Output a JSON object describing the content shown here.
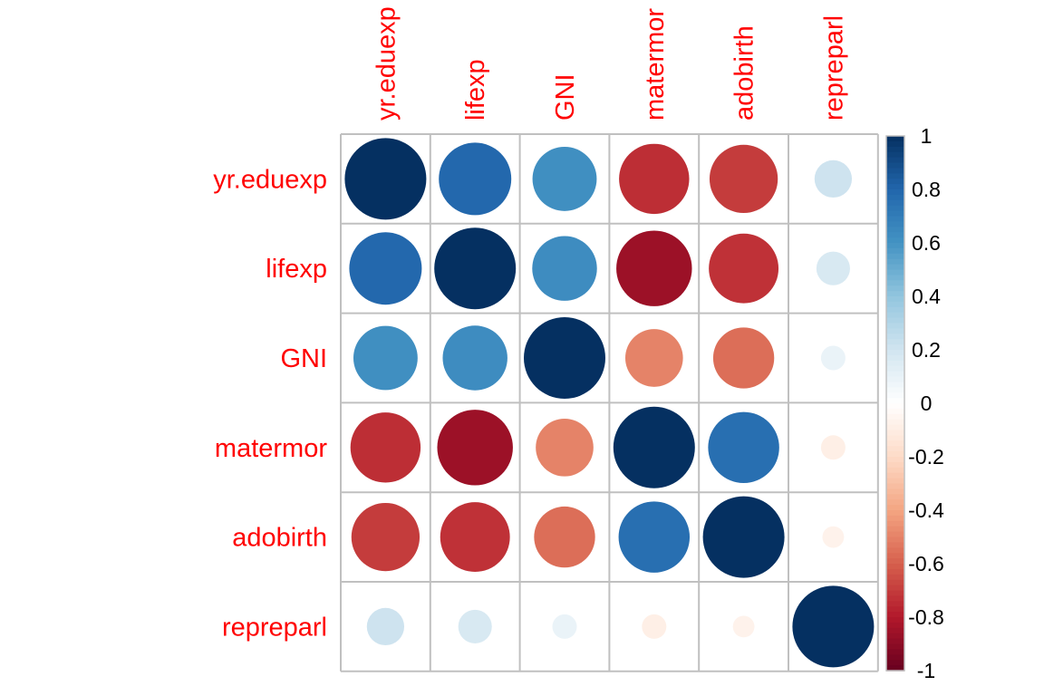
{
  "chart_data": {
    "type": "heatmap",
    "title": "",
    "variables": [
      "yr.eduexp",
      "lifexp",
      "GNI",
      "matermor",
      "adobirth",
      "repreparl"
    ],
    "matrix": [
      [
        1.0,
        0.79,
        0.62,
        -0.74,
        -0.7,
        0.21
      ],
      [
        0.79,
        1.0,
        0.63,
        -0.86,
        -0.73,
        0.17
      ],
      [
        0.62,
        0.63,
        1.0,
        -0.5,
        -0.56,
        0.09
      ],
      [
        -0.74,
        -0.86,
        -0.5,
        1.0,
        0.76,
        -0.09
      ],
      [
        -0.7,
        -0.73,
        -0.56,
        0.76,
        1.0,
        -0.07
      ],
      [
        0.21,
        0.17,
        0.09,
        -0.09,
        -0.07,
        1.0
      ]
    ],
    "colorbar": {
      "min": -1,
      "max": 1,
      "ticks": [
        "1",
        "0.8",
        "0.6",
        "0.4",
        "0.2",
        "0",
        "-0.2",
        "-0.4",
        "-0.6",
        "-0.8",
        "-1"
      ]
    },
    "grid": true,
    "colors": {
      "negative_end": "#67001f",
      "positive_end": "#053061",
      "zero": "#ffffff",
      "label": "#ff0000",
      "grid": "#c0c0c0"
    }
  }
}
